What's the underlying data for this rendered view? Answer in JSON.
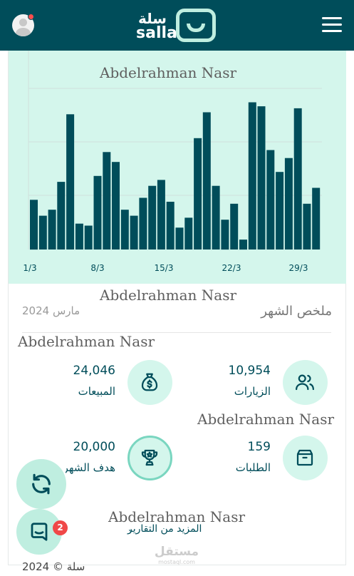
{
  "header": {
    "logo_text_ar": "سلة",
    "logo_text_en": "salla",
    "avatar_icon": "user-avatar-icon",
    "notification_color": "#ff4d4d",
    "menu_icon": "hamburger-menu-icon"
  },
  "watermark": "Abdelrahman Nasr",
  "chart_data": {
    "type": "bar",
    "x_tick_labels": [
      "1/3",
      "8/3",
      "15/3",
      "22/3",
      "29/3"
    ],
    "values": [
      0.25,
      0.17,
      0.2,
      0.34,
      0.68,
      0.13,
      0.12,
      0.37,
      0.49,
      0.44,
      0.2,
      0.17,
      0.26,
      0.32,
      0.35,
      0.24,
      0.11,
      0.16,
      0.56,
      0.69,
      0.32,
      0.15,
      0.23,
      0.05,
      0.74,
      0.72,
      0.5,
      0.39,
      0.46,
      0.71,
      0.23,
      0.31
    ],
    "colors": {
      "bar": "#004d5a",
      "background": "#d4f6ec",
      "gridline": "#cfe0dc"
    },
    "grid": "horizontal"
  },
  "summary": {
    "title": "ملخص الشهر",
    "date": "مارس 2024"
  },
  "stats": {
    "visits": {
      "value": "10,954",
      "label": "الزيارات",
      "icon": "users-icon"
    },
    "sales": {
      "value": "24,046",
      "label": "المبيعات",
      "icon": "money-bag-icon"
    },
    "orders": {
      "value": "159",
      "label": "الطلبات",
      "icon": "box-icon"
    },
    "goal": {
      "value": "20,000",
      "label": "هدف الشهر",
      "icon": "trophy-icon"
    }
  },
  "more_reports": "المزيد من التقارير",
  "footer": "سلة © 2024",
  "brand_mark": {
    "ar": "مستقل",
    "en": "mostaql.com"
  },
  "fab": {
    "refresh_icon": "refresh-icon",
    "chat_icon": "chat-icon",
    "chat_badge": "2"
  }
}
